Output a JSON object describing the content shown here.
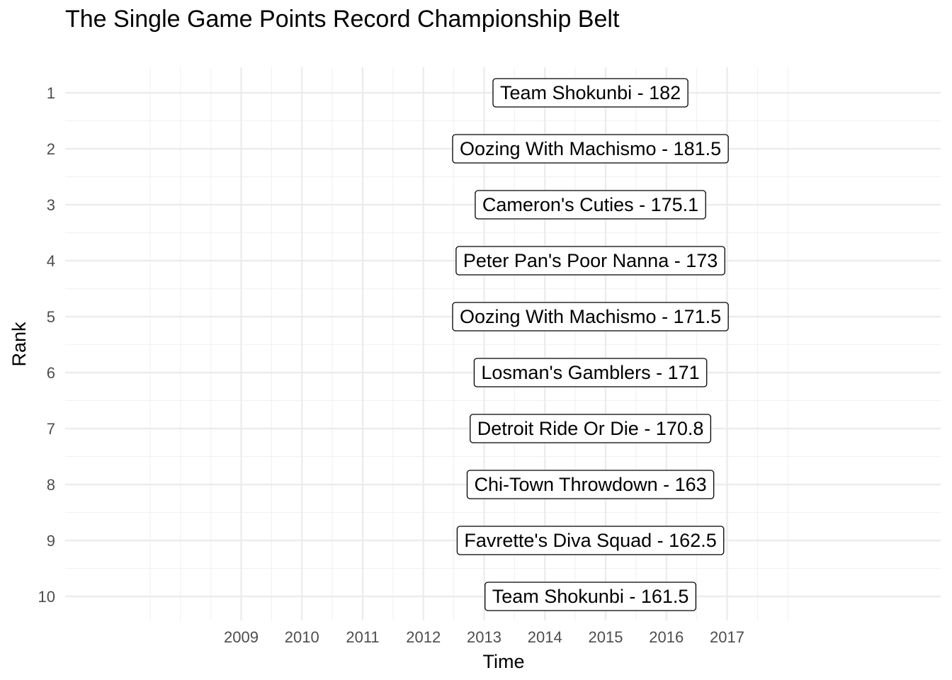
{
  "chart_data": {
    "type": "table",
    "title": "The Single Game Points Record Championship Belt",
    "xlabel": "Time",
    "ylabel": "Rank",
    "x_tick_labels": [
      "2009",
      "2010",
      "2011",
      "2012",
      "2013",
      "2014",
      "2015",
      "2016",
      "2017"
    ],
    "y_tick_labels": [
      "1",
      "2",
      "3",
      "4",
      "5",
      "6",
      "7",
      "8",
      "9",
      "10"
    ],
    "ylim": [
      1,
      10
    ],
    "y_reversed": true,
    "grid": true,
    "rows": [
      {
        "rank": 1,
        "label": "Team Shokunbi - 182",
        "team": "Team Shokunbi",
        "points": 182,
        "x": 2014.75
      },
      {
        "rank": 2,
        "label": "Oozing With Machismo - 181.5",
        "team": "Oozing With Machismo",
        "points": 181.5,
        "x": 2014.75
      },
      {
        "rank": 3,
        "label": "Cameron's Cuties - 175.1",
        "team": "Cameron's Cuties",
        "points": 175.1,
        "x": 2014.75
      },
      {
        "rank": 4,
        "label": "Peter Pan's Poor Nanna - 173",
        "team": "Peter Pan's Poor Nanna",
        "points": 173,
        "x": 2014.75
      },
      {
        "rank": 5,
        "label": "Oozing With Machismo - 171.5",
        "team": "Oozing With Machismo",
        "points": 171.5,
        "x": 2014.75
      },
      {
        "rank": 6,
        "label": "Losman's Gamblers - 171",
        "team": "Losman's Gamblers",
        "points": 171,
        "x": 2014.75
      },
      {
        "rank": 7,
        "label": "Detroit Ride Or Die - 170.8",
        "team": "Detroit Ride Or Die",
        "points": 170.8,
        "x": 2014.75
      },
      {
        "rank": 8,
        "label": "Chi-Town Throwdown - 163",
        "team": "Chi-Town Throwdown",
        "points": 163,
        "x": 2014.75
      },
      {
        "rank": 9,
        "label": "Favrette's Diva Squad - 162.5",
        "team": "Favrette's Diva Squad",
        "points": 162.5,
        "x": 2014.75
      },
      {
        "rank": 10,
        "label": "Team Shokunbi - 161.5",
        "team": "Team Shokunbi",
        "points": 161.5,
        "x": 2014.75
      }
    ],
    "colors": {
      "grid_major": "#ebebeb",
      "grid_minor": "#f2f2f2",
      "tick_text": "#4d4d4d",
      "label_border": "#000000",
      "label_fill": "#ffffff"
    }
  }
}
